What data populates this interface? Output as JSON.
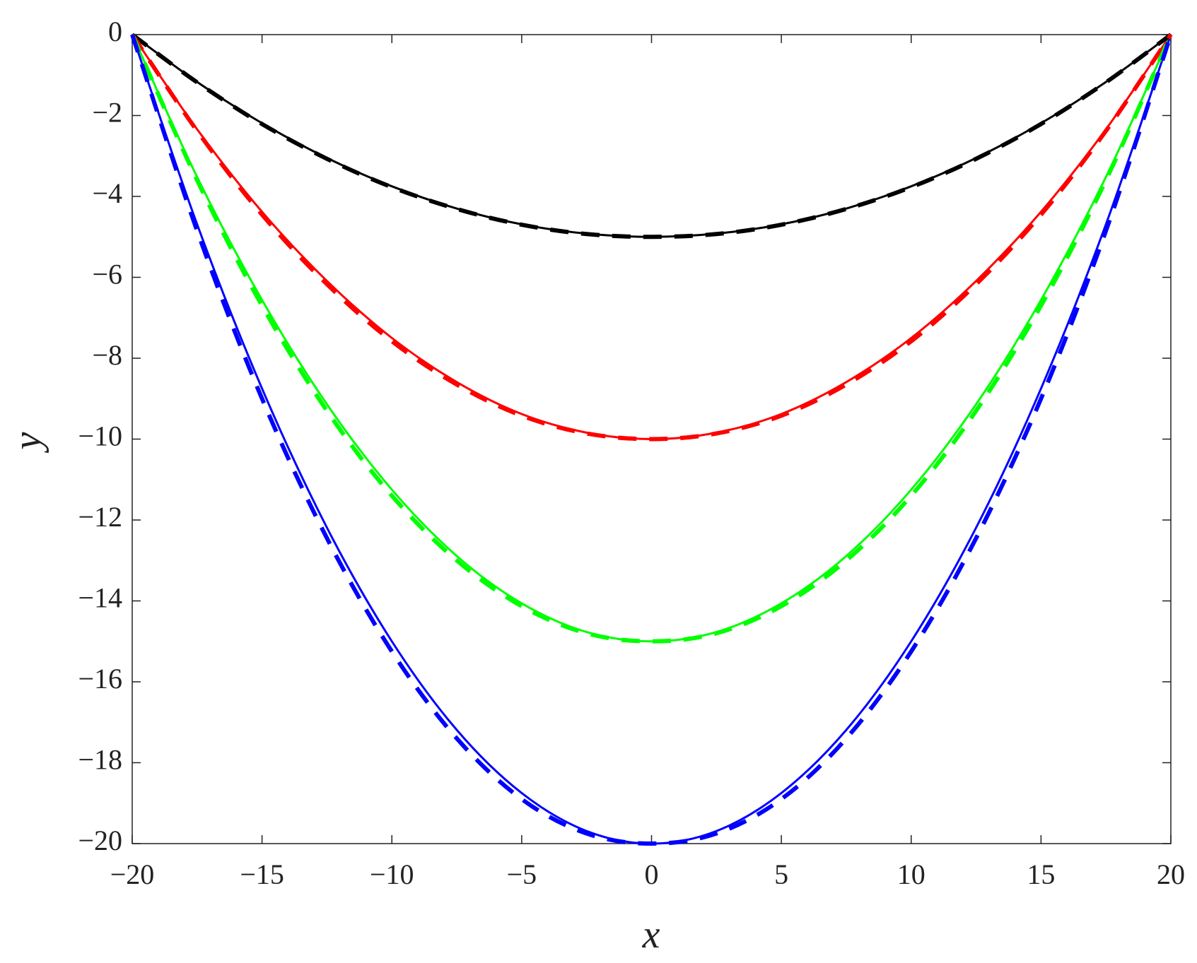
{
  "chart_data": {
    "type": "line",
    "xlabel": "x",
    "ylabel": "y",
    "x": [
      -20,
      -17.5,
      -15,
      -12.5,
      -10,
      -7.5,
      -5,
      -2.5,
      0,
      2.5,
      5,
      7.5,
      10,
      12.5,
      15,
      17.5,
      20
    ],
    "xlim": [
      -20,
      20
    ],
    "xticks": [
      {
        "value": -20,
        "label": "−20"
      },
      {
        "value": -15,
        "label": "−15"
      },
      {
        "value": -10,
        "label": "−10"
      },
      {
        "value": -5,
        "label": "−5"
      },
      0,
      5,
      10,
      15,
      20
    ],
    "ylim": [
      -20,
      0
    ],
    "yticks": [
      0,
      {
        "value": -2,
        "label": "−2"
      },
      {
        "value": -4,
        "label": "−4"
      },
      {
        "value": -6,
        "label": "−6"
      },
      {
        "value": -8,
        "label": "−8"
      },
      {
        "value": -10,
        "label": "−10"
      },
      {
        "value": -12,
        "label": "−12"
      },
      {
        "value": -14,
        "label": "−14"
      },
      {
        "value": -16,
        "label": "−16"
      },
      {
        "value": -18,
        "label": "−18"
      },
      {
        "value": -20,
        "label": "−20"
      }
    ],
    "grid": false,
    "series": [
      {
        "color": "#000000",
        "linestyle": "solid",
        "values": [
          0,
          -1.17,
          -2.19,
          -3.05,
          -3.75,
          -4.3,
          -4.69,
          -4.92,
          -5,
          -4.92,
          -4.69,
          -4.3,
          -3.75,
          -3.05,
          -2.19,
          -1.17,
          0
        ]
      },
      {
        "color": "#ff0000",
        "linestyle": "solid",
        "values": [
          0,
          -2.34,
          -4.38,
          -6.09,
          -7.5,
          -8.59,
          -9.38,
          -9.84,
          -10,
          -9.84,
          -9.38,
          -8.59,
          -7.5,
          -6.09,
          -4.38,
          -2.34,
          0
        ]
      },
      {
        "color": "#00ff00",
        "linestyle": "solid",
        "values": [
          0,
          -3.52,
          -6.56,
          -9.14,
          -11.25,
          -12.89,
          -14.06,
          -14.77,
          -15,
          -14.77,
          -14.06,
          -12.89,
          -11.25,
          -9.14,
          -6.56,
          -3.52,
          0
        ]
      },
      {
        "color": "#0000ff",
        "linestyle": "solid",
        "values": [
          0,
          -4.69,
          -8.75,
          -12.19,
          -15,
          -17.19,
          -18.75,
          -19.69,
          -20,
          -19.69,
          -18.75,
          -17.19,
          -15,
          -12.19,
          -8.75,
          -4.69,
          0
        ]
      },
      {
        "color": "#000000",
        "linestyle": "dashed",
        "values": [
          0,
          -1.18,
          -2.21,
          -3.07,
          -3.77,
          -4.31,
          -4.7,
          -4.93,
          -5,
          -4.93,
          -4.7,
          -4.31,
          -3.77,
          -3.07,
          -2.21,
          -1.18,
          0
        ]
      },
      {
        "color": "#ff0000",
        "linestyle": "dashed",
        "values": [
          0,
          -2.38,
          -4.45,
          -6.17,
          -7.58,
          -8.65,
          -9.42,
          -9.86,
          -10,
          -9.86,
          -9.42,
          -8.65,
          -7.58,
          -6.17,
          -4.45,
          -2.38,
          0
        ]
      },
      {
        "color": "#00ff00",
        "linestyle": "dashed",
        "values": [
          0,
          -3.6,
          -6.7,
          -9.3,
          -11.4,
          -13,
          -14.13,
          -14.8,
          -15,
          -14.8,
          -14.13,
          -13,
          -11.4,
          -9.3,
          -6.7,
          -3.6,
          0
        ]
      },
      {
        "color": "#0000ff",
        "linestyle": "dashed",
        "values": [
          0,
          -4.85,
          -9,
          -12.45,
          -15.25,
          -17.4,
          -18.9,
          -19.75,
          -20,
          -19.75,
          -18.9,
          -17.4,
          -15.25,
          -12.45,
          -9,
          -4.85,
          0
        ]
      }
    ]
  }
}
